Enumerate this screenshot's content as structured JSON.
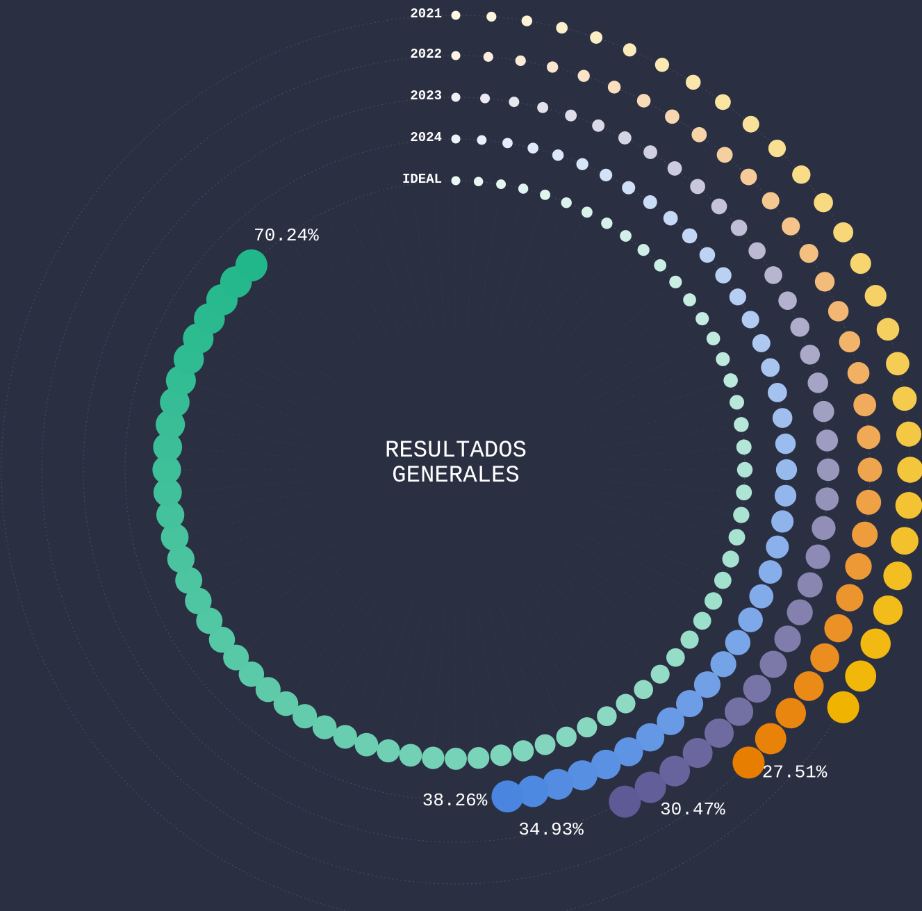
{
  "chart_data": {
    "type": "radial-dots",
    "title": "RESULTADOS GENERALES",
    "rlim": [
      0,
      80
    ],
    "series": [
      {
        "name": "2021",
        "color": "#f0b400",
        "values": [
          27.51
        ],
        "value_labels": [
          "27.51%"
        ]
      },
      {
        "name": "2022",
        "color": "#e87e00",
        "values": [
          30.47
        ],
        "value_labels": [
          "30.47%"
        ]
      },
      {
        "name": "2023",
        "color": "#5e5a96",
        "values": [
          34.93
        ],
        "value_labels": [
          "34.93%"
        ]
      },
      {
        "name": "2024",
        "color": "#4a86e0",
        "values": [
          38.26
        ],
        "value_labels": [
          "38.26%"
        ]
      },
      {
        "name": "IDEAL",
        "color": "#22b78a",
        "values": [
          70.24
        ],
        "value_labels": [
          "70.24%"
        ]
      }
    ]
  }
}
